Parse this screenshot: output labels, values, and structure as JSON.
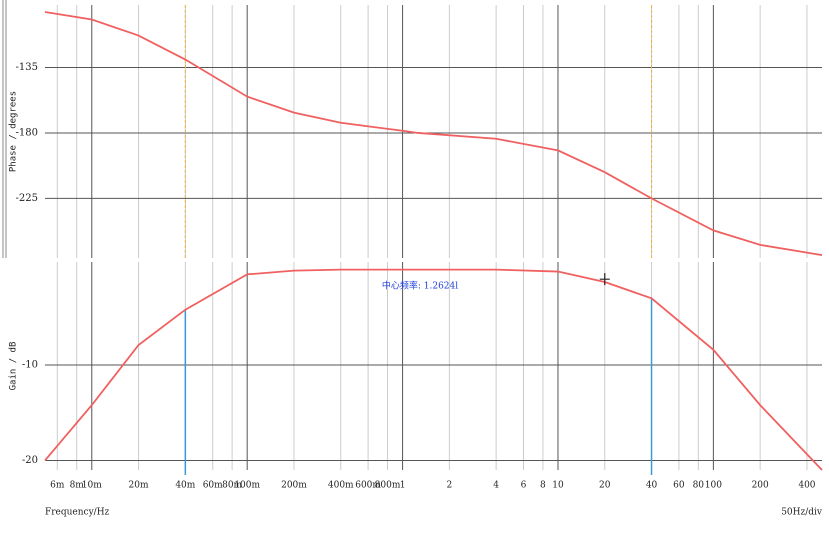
{
  "chart_data": [
    {
      "type": "line",
      "ylabel": "Phase / degrees",
      "xscale": "log",
      "grid": true,
      "xlim": [
        0.005,
        500
      ],
      "ylim": [
        -266,
        -92
      ],
      "yticks": [
        -135,
        -180,
        -225
      ],
      "x": [
        0.005,
        0.01,
        0.02,
        0.04,
        0.1,
        0.2,
        0.4,
        1,
        1.26,
        4,
        10,
        20,
        40,
        100,
        200,
        500
      ],
      "series": [
        {
          "color": "#f06060",
          "values": [
            -96.8,
            -102,
            -113,
            -129.5,
            -155,
            -166,
            -173,
            -178.5,
            -180,
            -184,
            -192,
            -207,
            -225,
            -247,
            -257,
            -264
          ]
        }
      ],
      "cursors": [
        0.04,
        40
      ],
      "cursor_color": "#f0b040"
    },
    {
      "type": "line",
      "ylabel": "Gain / dB",
      "xlabel": "Frequency/Hz",
      "scale_note": "50Hz/div",
      "xscale": "log",
      "grid": true,
      "xlim": [
        0.005,
        500
      ],
      "ylim": [
        -21,
        0.8
      ],
      "yticks": [
        -10,
        -20
      ],
      "xticks": [
        {
          "value": 0.006,
          "label": "6m"
        },
        {
          "value": 0.008,
          "label": "8m"
        },
        {
          "value": 0.01,
          "label": "10m"
        },
        {
          "value": 0.02,
          "label": "20m"
        },
        {
          "value": 0.04,
          "label": "40m"
        },
        {
          "value": 0.06,
          "label": "60m"
        },
        {
          "value": 0.08,
          "label": "80m"
        },
        {
          "value": 0.1,
          "label": "100m"
        },
        {
          "value": 0.2,
          "label": "200m"
        },
        {
          "value": 0.4,
          "label": "400m"
        },
        {
          "value": 0.6,
          "label": "600m"
        },
        {
          "value": 0.8,
          "label": "800m"
        },
        1,
        2,
        4,
        6,
        8,
        10,
        20,
        40,
        60,
        80,
        100,
        200,
        400
      ],
      "x": [
        0.005,
        0.01,
        0.02,
        0.04,
        0.1,
        0.2,
        0.4,
        1,
        1.26,
        4,
        10,
        20,
        40,
        100,
        200,
        500
      ],
      "series": [
        {
          "color": "#f06060",
          "values": [
            -20,
            -14.2,
            -7.9,
            -4.2,
            -0.5,
            -0.1,
            0,
            0,
            0,
            0,
            -0.2,
            -1.3,
            -3,
            -8.4,
            -14.2,
            -21
          ]
        }
      ],
      "cursors": [
        0.04,
        40
      ],
      "cursor_color": "#3a9ad9",
      "annotation": "中心频率: 1.2624l",
      "cursor_point": {
        "x": 20,
        "y": -1
      }
    }
  ]
}
